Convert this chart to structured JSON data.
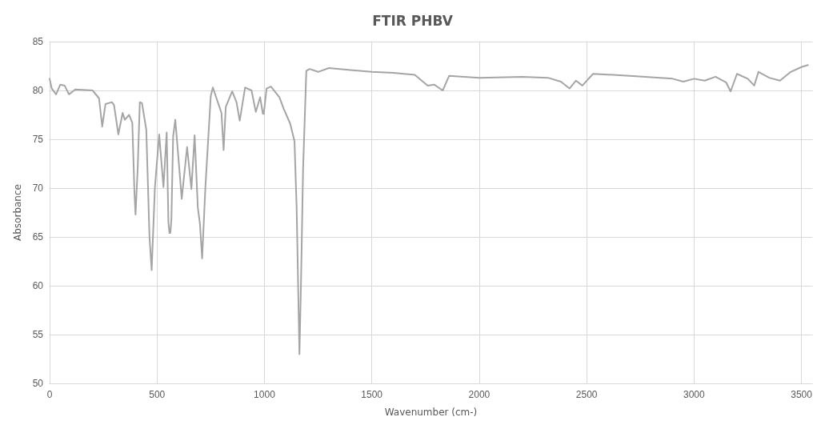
{
  "chart_data": {
    "type": "line",
    "title": "FTIR PHBV",
    "xlabel": "Wavenumber (cm-)",
    "ylabel": "Absorbance",
    "xlim": [
      0,
      3550
    ],
    "xticks": [
      0,
      500,
      1000,
      1500,
      2000,
      2500,
      3000,
      3500
    ],
    "ylim": [
      50,
      85
    ],
    "yticks": [
      50,
      55,
      60,
      65,
      70,
      75,
      80,
      85
    ],
    "grid": true,
    "marker": "none",
    "line_style": "solid",
    "series": [
      {
        "color": "#a5a5a5",
        "x": [
          0,
          10,
          30,
          50,
          70,
          90,
          120,
          200,
          230,
          245,
          260,
          290,
          300,
          310,
          320,
          340,
          350,
          370,
          385,
          395,
          400,
          410,
          420,
          430,
          450,
          465,
          475,
          490,
          510,
          530,
          545,
          553,
          558,
          562,
          567,
          575,
          585,
          600,
          615,
          640,
          660,
          675,
          690,
          700,
          710,
          725,
          750,
          760,
          780,
          800,
          810,
          820,
          850,
          870,
          885,
          910,
          940,
          960,
          980,
          993,
          997,
          1010,
          1030,
          1070,
          1090,
          1120,
          1140,
          1150,
          1163,
          1170,
          1180,
          1195,
          1210,
          1250,
          1300,
          1400,
          1500,
          1600,
          1700,
          1760,
          1790,
          1830,
          1860,
          2000,
          2200,
          2320,
          2380,
          2420,
          2450,
          2480,
          2530,
          2700,
          2900,
          2950,
          3000,
          3050,
          3100,
          3150,
          3170,
          3200,
          3250,
          3280,
          3300,
          3350,
          3400,
          3450,
          3500,
          3530
        ],
        "values": [
          81.2,
          80.2,
          79.6,
          80.6,
          80.5,
          79.6,
          80.1,
          80.0,
          79.2,
          76.3,
          78.6,
          78.8,
          78.5,
          77.0,
          75.5,
          77.7,
          77.0,
          77.5,
          76.7,
          69.5,
          67.3,
          72,
          78.8,
          78.7,
          76,
          65,
          61.6,
          70,
          75.5,
          70.1,
          75.7,
          66.5,
          65.4,
          65.4,
          66.8,
          75.3,
          77,
          73,
          68.9,
          74.2,
          69.9,
          75.4,
          68,
          66.3,
          62.8,
          70,
          79.4,
          80.3,
          79,
          77.7,
          73.9,
          78.3,
          79.9,
          78.8,
          76.9,
          80.3,
          80,
          77.8,
          79.3,
          77.6,
          77.6,
          80.2,
          80.4,
          79.3,
          78.1,
          76.6,
          74.8,
          68,
          53,
          60,
          72,
          82,
          82.2,
          81.9,
          82.3,
          82.1,
          81.9,
          81.8,
          81.6,
          80.5,
          80.6,
          80.0,
          81.5,
          81.3,
          81.4,
          81.3,
          80.9,
          80.2,
          81.0,
          80.5,
          81.7,
          81.5,
          81.2,
          80.9,
          81.2,
          81.0,
          81.4,
          80.8,
          79.9,
          81.7,
          81.2,
          80.5,
          81.9,
          81.3,
          81.0,
          81.9,
          82.4,
          82.6
        ]
      }
    ]
  }
}
